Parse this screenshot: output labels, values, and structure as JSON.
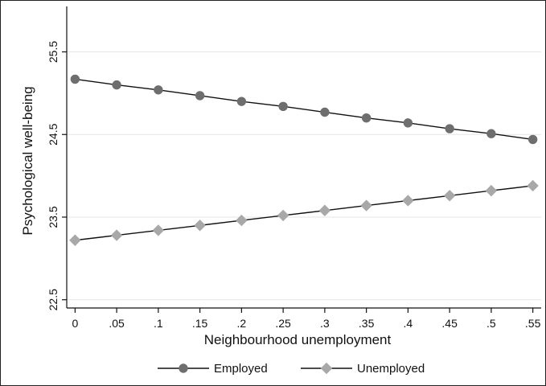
{
  "chart_data": {
    "type": "line",
    "title": "",
    "xlabel": "Neighbourhood unemployment",
    "ylabel": "Psychological well-being",
    "x": [
      0,
      0.05,
      0.1,
      0.15,
      0.2,
      0.25,
      0.3,
      0.35,
      0.4,
      0.45,
      0.5,
      0.55
    ],
    "x_tick_labels": [
      "0",
      ".05",
      ".1",
      ".15",
      ".2",
      ".25",
      ".3",
      ".35",
      ".4",
      ".45",
      ".5",
      ".55"
    ],
    "y_ticks": [
      22.5,
      23.5,
      24.5,
      25.5
    ],
    "y_tick_labels": [
      "22.5",
      "23.5",
      "24.5",
      "25.5"
    ],
    "ylim": [
      22.4,
      26.05
    ],
    "xlim": [
      -0.01,
      0.56
    ],
    "grid": true,
    "legend_position": "bottom",
    "series": [
      {
        "name": "Employed",
        "marker": "circle",
        "color": "#6e6e6e",
        "values": [
          25.17,
          25.1,
          25.04,
          24.97,
          24.9,
          24.84,
          24.77,
          24.7,
          24.64,
          24.57,
          24.51,
          24.44
        ]
      },
      {
        "name": "Unemployed",
        "marker": "diamond",
        "color": "#a8a8a8",
        "values": [
          23.22,
          23.28,
          23.34,
          23.4,
          23.46,
          23.52,
          23.58,
          23.64,
          23.7,
          23.76,
          23.82,
          23.88
        ]
      }
    ]
  }
}
